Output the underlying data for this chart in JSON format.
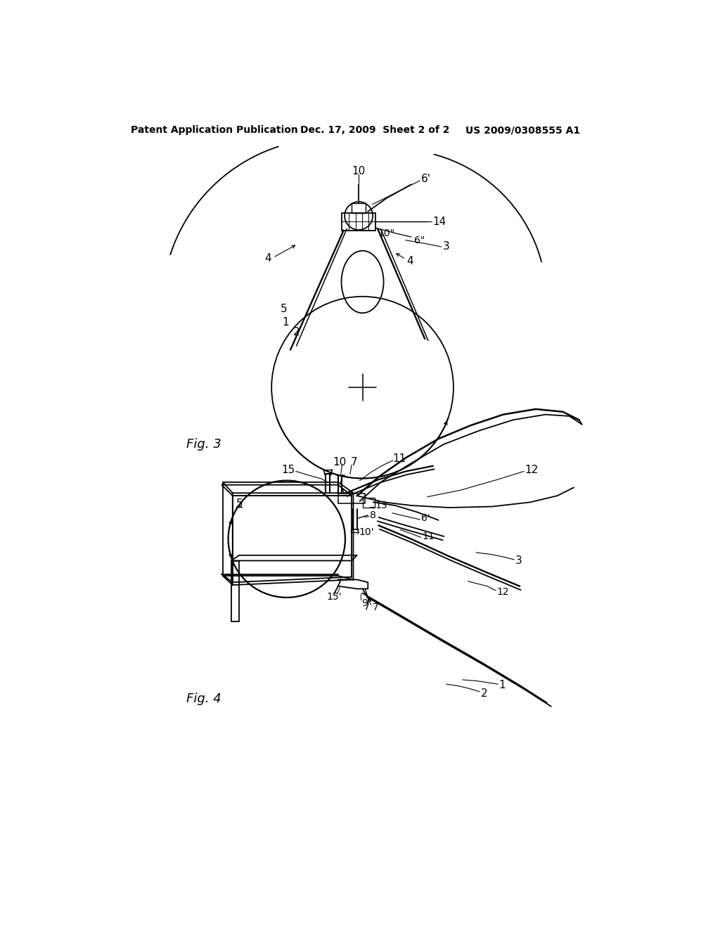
{
  "bg_color": "#ffffff",
  "header_left": "Patent Application Publication",
  "header_mid": "Dec. 17, 2009  Sheet 2 of 2",
  "header_right": "US 2009/0308555 A1",
  "fig3_label": "Fig. 3",
  "fig4_label": "Fig. 4",
  "line_color": "#000000",
  "line_width": 1.3
}
